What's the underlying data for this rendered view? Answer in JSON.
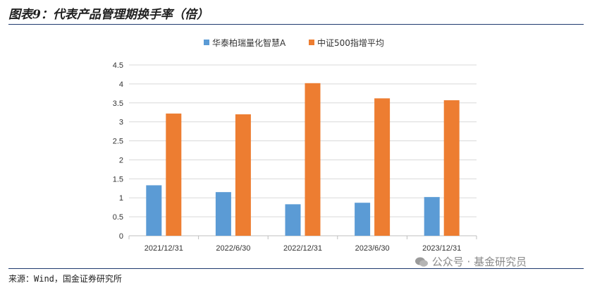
{
  "figure": {
    "title": "图表9：代表产品管理期换手率（倍）",
    "source": "来源：Wind，国金证券研究所",
    "watermark": "公众号 · 基金研究员"
  },
  "colors": {
    "series1": "#5b9bd5",
    "series2": "#ed7d31",
    "rule": "#1f3a6e",
    "grid": "#d9d9d9"
  },
  "chart_data": {
    "type": "bar",
    "categories": [
      "2021/12/31",
      "2022/6/30",
      "2022/12/31",
      "2023/6/30",
      "2023/12/31"
    ],
    "series": [
      {
        "name": "华泰柏瑞量化智慧A",
        "values": [
          1.33,
          1.15,
          0.83,
          0.87,
          1.02
        ]
      },
      {
        "name": "中证500指增平均",
        "values": [
          3.22,
          3.2,
          4.02,
          3.62,
          3.57
        ]
      }
    ],
    "yticks": [
      "0",
      "0.5",
      "1",
      "1.5",
      "2",
      "2.5",
      "3",
      "3.5",
      "4",
      "4.5"
    ],
    "ylim": [
      0,
      4.5
    ],
    "grid": true,
    "legend": "top"
  }
}
